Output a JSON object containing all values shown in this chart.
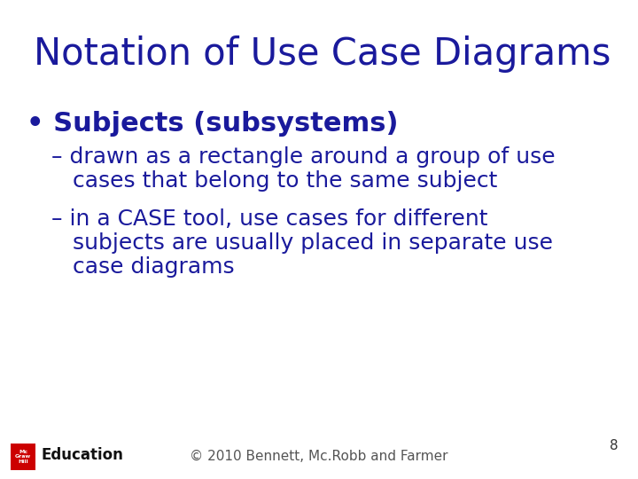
{
  "title": "Notation of Use Case Diagrams",
  "title_color": "#1a1a9c",
  "title_fontsize": 30,
  "background_color": "#ffffff",
  "text_color": "#1a1a9c",
  "bullet_text": "Subjects (subsystems)",
  "bullet_fontsize": 22,
  "sub_bullet1_line1": "– drawn as a rectangle around a group of use",
  "sub_bullet1_line2": "   cases that belong to the same subject",
  "sub_bullet2_line1": "– in a CASE tool, use cases for different",
  "sub_bullet2_line2": "   subjects are usually placed in separate use",
  "sub_bullet2_line3": "   case diagrams",
  "sub_fontsize": 18,
  "footer_text": "© 2010 Bennett, Mc.Robb and Farmer",
  "footer_fontsize": 11,
  "page_number": "8",
  "logo_text": "Mc\nGraw\nHill",
  "logo_bg": "#cc0000",
  "education_text": "Education",
  "education_fontsize": 12
}
